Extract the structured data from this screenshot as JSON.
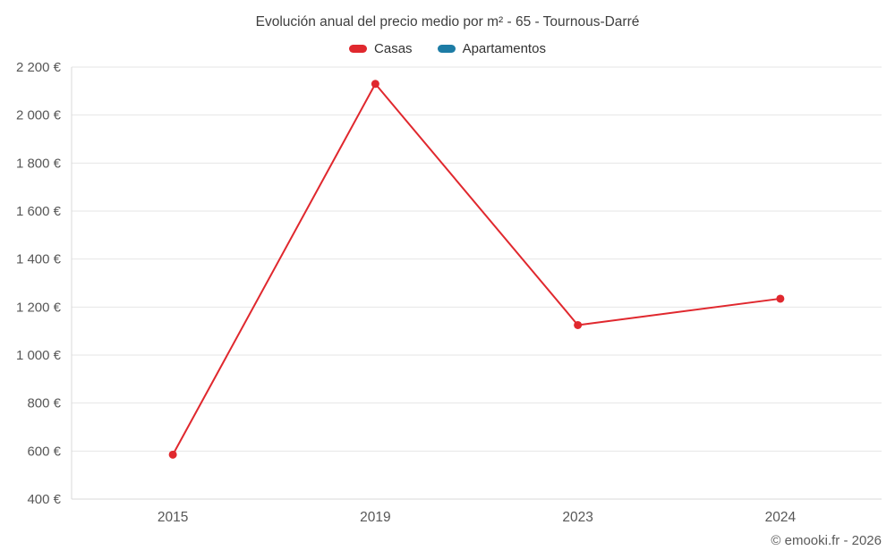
{
  "chart_data": {
    "type": "line",
    "title": "Evolución anual del precio medio por m² - 65 - Tournous-Darré",
    "categories": [
      "2015",
      "2019",
      "2023",
      "2024"
    ],
    "series": [
      {
        "name": "Casas",
        "color": "#e0282e",
        "values": [
          585,
          2130,
          1125,
          1235
        ]
      },
      {
        "name": "Apartamentos",
        "color": "#1d7ca5",
        "values": []
      }
    ],
    "xlabel": "",
    "ylabel": "",
    "ylim": [
      400,
      2200
    ],
    "ytick_step": 200,
    "ytick_suffix": " €",
    "grid": true,
    "legend_position": "top",
    "colors": {
      "gridline": "#e6e6e6",
      "axis": "#d9d9d9",
      "tick_text": "#575757"
    }
  },
  "footer": {
    "copyright": "© emooki.fr - 2026"
  }
}
